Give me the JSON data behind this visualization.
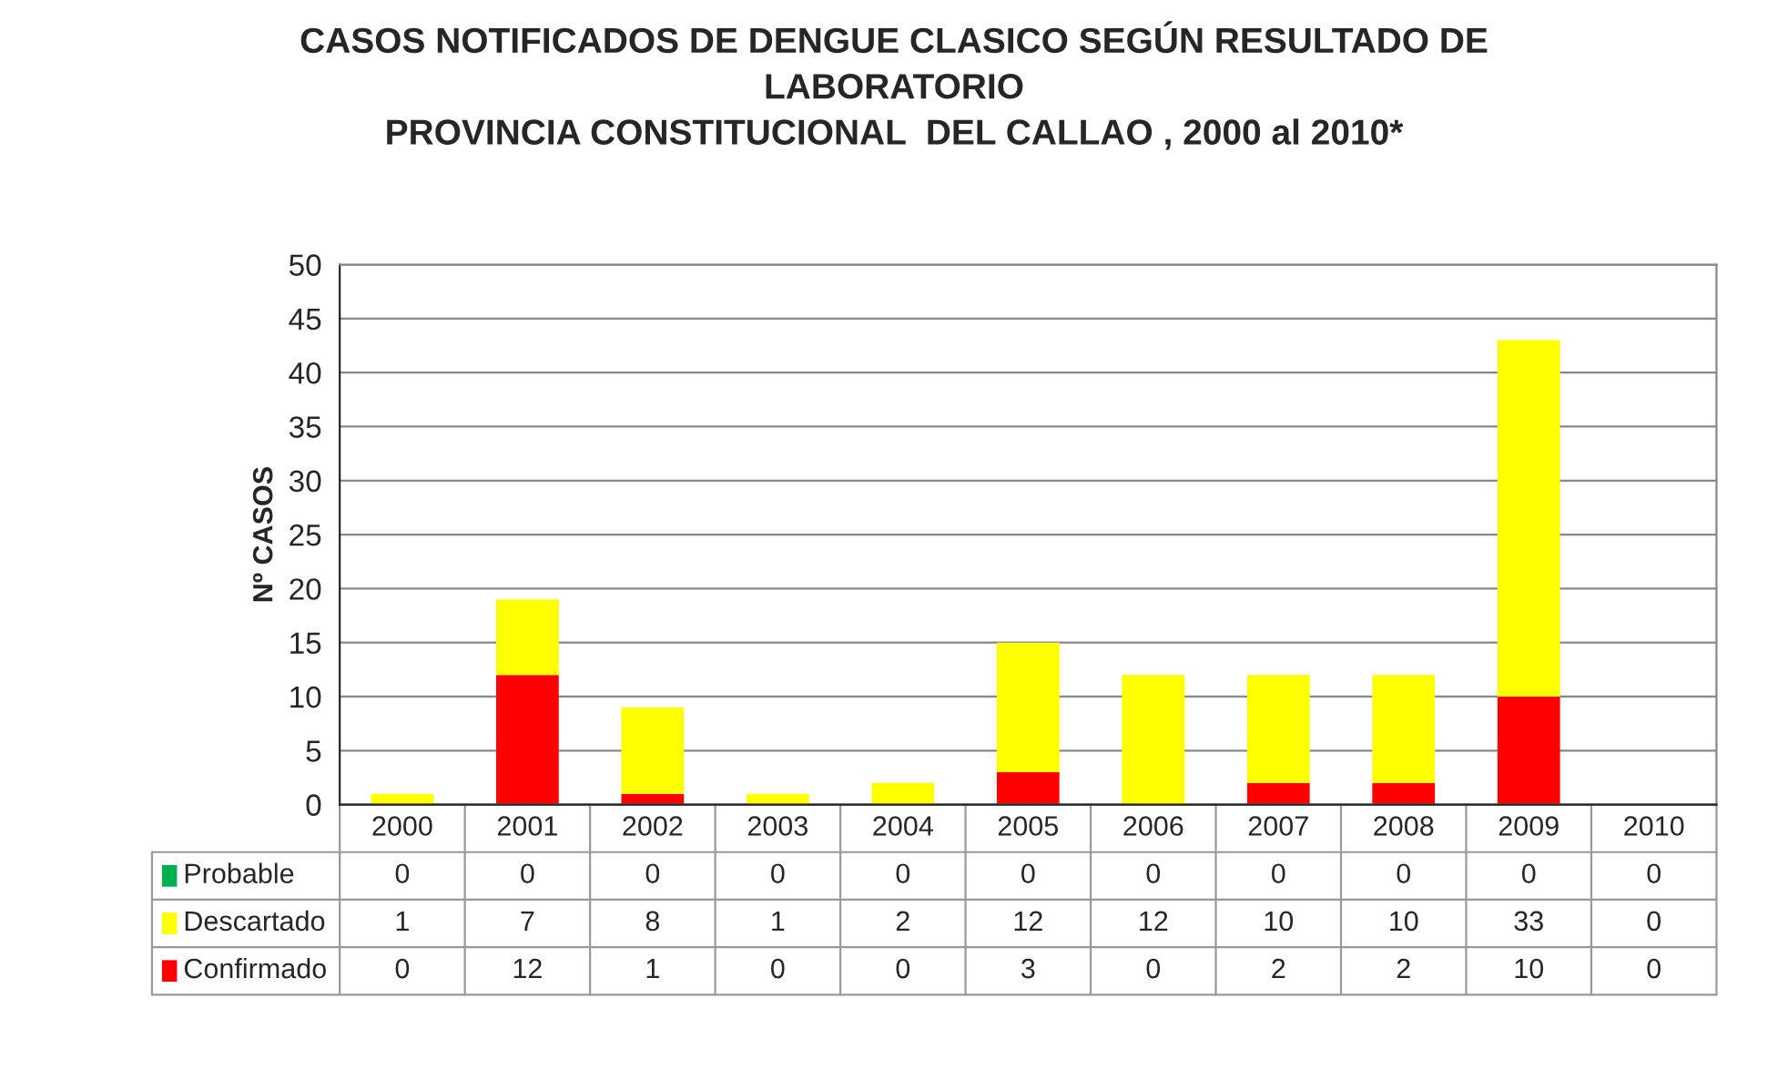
{
  "chart_data": {
    "type": "bar",
    "title": "CASOS NOTIFICADOS DE DENGUE CLASICO SEGÚN RESULTADO DE\nLABORATORIO\nPROVINCIA CONSTITUCIONAL  DEL CALLAO , 2000 al 2010*",
    "ylabel": "Nº CASOS",
    "categories": [
      "2000",
      "2001",
      "2002",
      "2003",
      "2004",
      "2005",
      "2006",
      "2007",
      "2008",
      "2009",
      "2010"
    ],
    "stacked": true,
    "series": [
      {
        "name": "Confirmado",
        "color": "#ff0000",
        "values": [
          0,
          12,
          1,
          0,
          0,
          3,
          0,
          2,
          2,
          10,
          0
        ]
      },
      {
        "name": "Descartado",
        "color": "#ffff00",
        "values": [
          1,
          7,
          8,
          1,
          2,
          12,
          12,
          10,
          10,
          33,
          0
        ]
      },
      {
        "name": "Probable",
        "color": "#00b050",
        "values": [
          0,
          0,
          0,
          0,
          0,
          0,
          0,
          0,
          0,
          0,
          0
        ]
      }
    ],
    "ylim": [
      0,
      50
    ],
    "yticks": [
      0,
      5,
      10,
      15,
      20,
      25,
      30,
      35,
      40,
      45,
      50
    ],
    "grid": "y",
    "legend": "bottom",
    "data_labels": true
  }
}
